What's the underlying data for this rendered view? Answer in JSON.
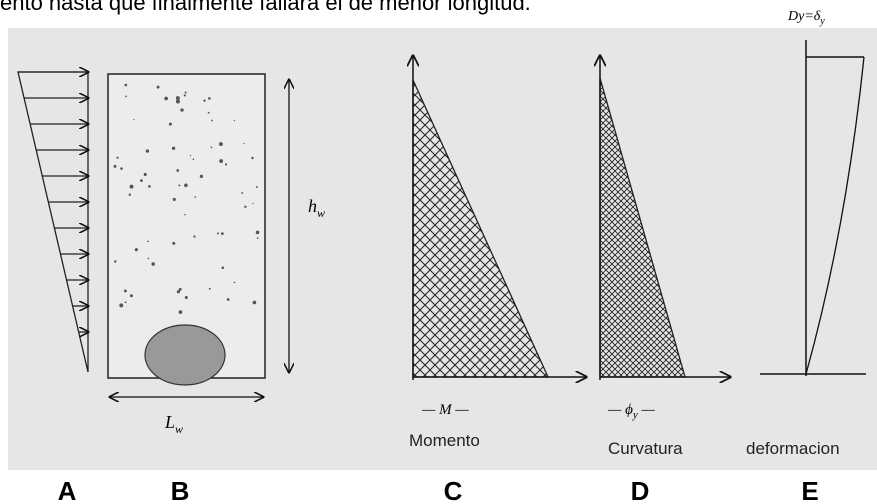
{
  "header": {
    "text": "ento hasta que finalmente fallará el de menor longitud."
  },
  "figure": {
    "wall_height": {
      "main": "h",
      "sub": "w"
    },
    "wall_length": {
      "main": "L",
      "sub": "w"
    },
    "moment": {
      "symbol": "— M —",
      "caption": "Momento"
    },
    "curvature": {
      "symbol": "— ϕ",
      "sub": "y",
      "tail": " —",
      "caption": "Curvatura"
    },
    "deformation": {
      "top": "Dy=δ",
      "sub": "y",
      "caption": "deformacion"
    }
  },
  "panels": [
    "A",
    "B",
    "C",
    "D",
    "E"
  ]
}
